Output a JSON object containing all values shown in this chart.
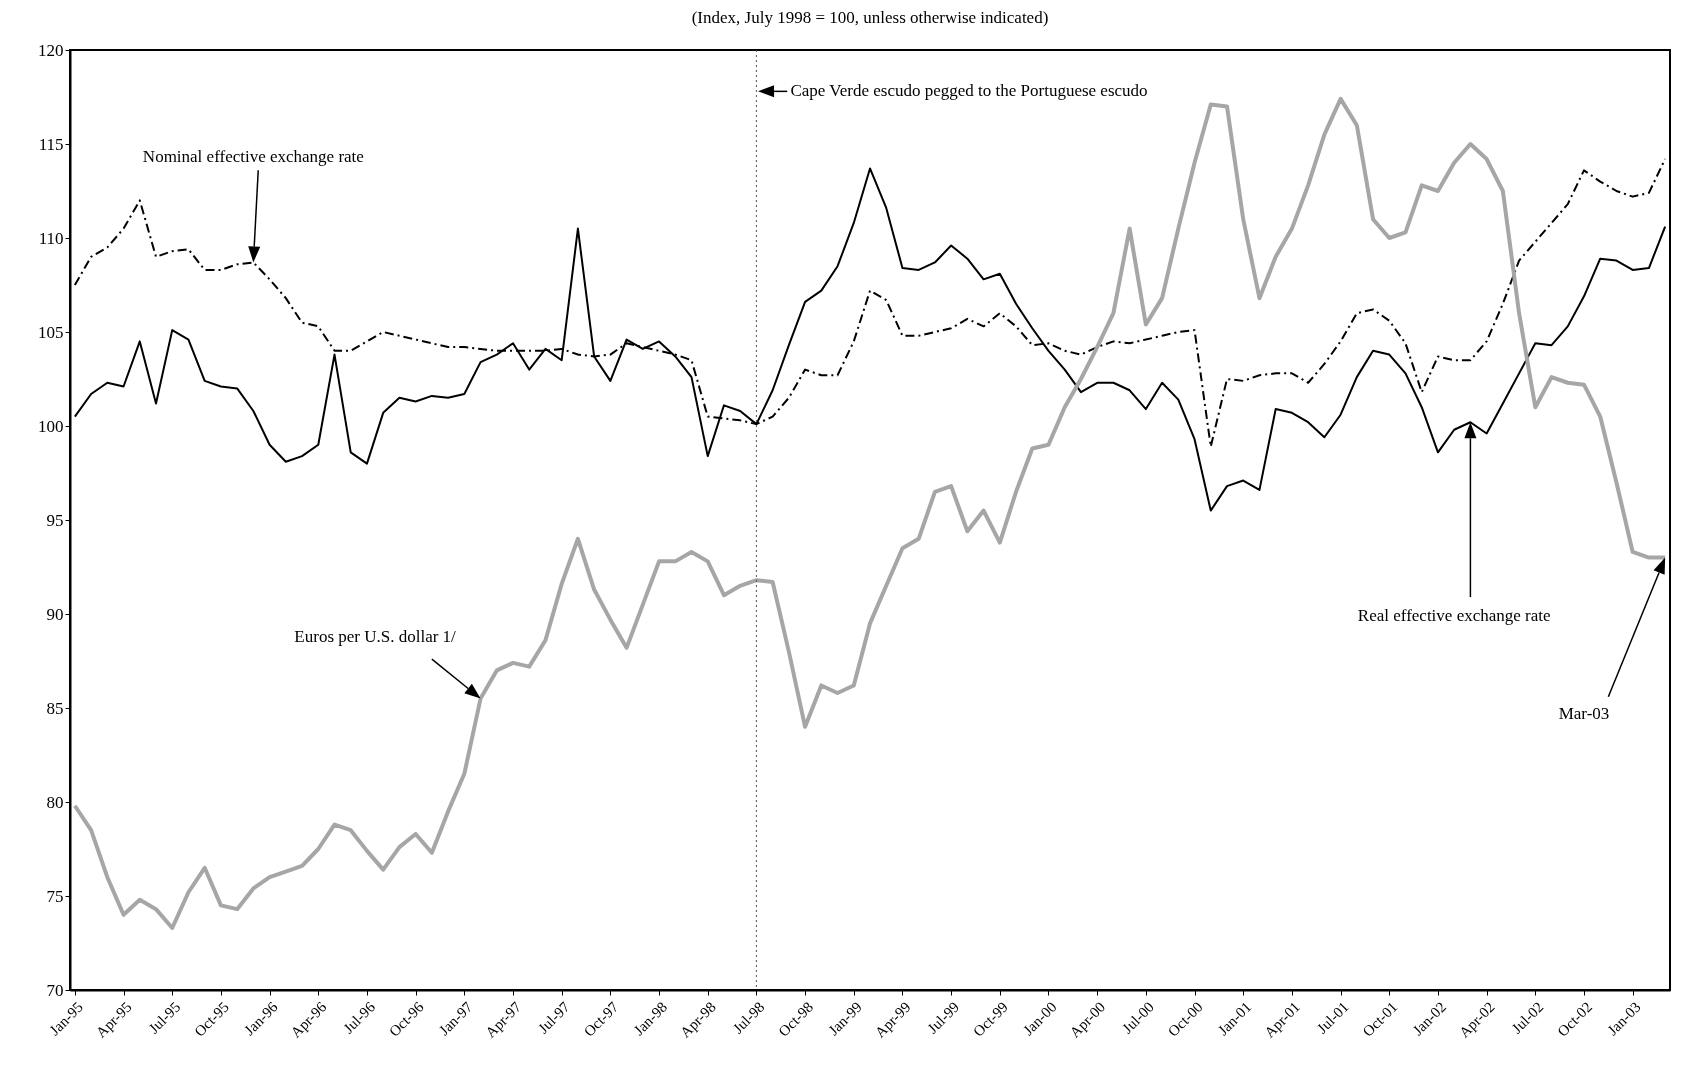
{
  "chart_data": {
    "type": "line",
    "title": "(Index, July 1998 = 100, unless otherwise indicated)",
    "categories": [
      "Jan-95",
      null,
      null,
      "Apr-95",
      null,
      null,
      "Jul-95",
      null,
      null,
      "Oct-95",
      null,
      null,
      "Jan-96",
      null,
      null,
      "Apr-96",
      null,
      null,
      "Jul-96",
      null,
      null,
      "Oct-96",
      null,
      null,
      "Jan-97",
      null,
      null,
      "Apr-97",
      null,
      null,
      "Jul-97",
      null,
      null,
      "Oct-97",
      null,
      null,
      "Jan-98",
      null,
      null,
      "Apr-98",
      null,
      null,
      "Jul-98",
      null,
      null,
      "Oct-98",
      null,
      null,
      "Jan-99",
      null,
      null,
      "Apr-99",
      null,
      null,
      "Jul-99",
      null,
      null,
      "Oct-99",
      null,
      null,
      "Jan-00",
      null,
      null,
      "Apr-00",
      null,
      null,
      "Jul-00",
      null,
      null,
      "Oct-00",
      null,
      null,
      "Jan-01",
      null,
      null,
      "Apr-01",
      null,
      null,
      "Jul-01",
      null,
      null,
      "Oct-01",
      null,
      null,
      "Jan-02",
      null,
      null,
      "Apr-02",
      null,
      null,
      "Jul-02",
      null,
      null,
      "Oct-02",
      null,
      null,
      "Jan-03",
      null,
      null
    ],
    "ylim": [
      70,
      120
    ],
    "yticks": [
      70,
      75,
      80,
      85,
      90,
      95,
      100,
      105,
      110,
      115,
      120
    ],
    "series": [
      {
        "name": "Nominal effective exchange rate",
        "color": "#000000",
        "line_style": "dashed",
        "values": [
          107.5,
          109,
          109.5,
          110.5,
          112,
          109,
          109.3,
          109.4,
          108.3,
          108.3,
          108.6,
          108.7,
          107.8,
          106.8,
          105.5,
          105.3,
          104,
          104,
          104.5,
          105,
          104.8,
          104.6,
          104.4,
          104.2,
          104.2,
          104.1,
          104,
          104,
          104,
          104,
          104.1,
          103.8,
          103.7,
          103.8,
          104.4,
          104.2,
          104,
          103.8,
          103.5,
          100.5,
          100.4,
          100.3,
          100.1,
          100.5,
          101.5,
          103,
          102.7,
          102.7,
          104.5,
          107.2,
          106.7,
          104.8,
          104.8,
          105,
          105.2,
          105.7,
          105.3,
          106,
          105.3,
          104.3,
          104.4,
          104,
          103.8,
          104.2,
          104.5,
          104.4,
          104.6,
          104.8,
          105,
          105.1,
          98.9,
          102.5,
          102.4,
          102.7,
          102.8,
          102.8,
          102.3,
          103.3,
          104.5,
          106,
          106.2,
          105.6,
          104.4,
          101.8,
          103.7,
          103.5,
          103.5,
          104.5,
          106.5,
          108.8,
          109.8,
          110.8,
          111.8,
          113.6,
          113,
          112.5,
          112.2,
          112.4,
          114.2
        ]
      },
      {
        "name": "Real effective exchange rate",
        "color": "#000000",
        "line_style": "solid",
        "values": [
          100.5,
          101.7,
          102.3,
          102.1,
          104.5,
          101.2,
          105.1,
          104.6,
          102.4,
          102.1,
          102,
          100.8,
          99,
          98.1,
          98.4,
          99,
          103.8,
          98.6,
          98,
          100.7,
          101.5,
          101.3,
          101.6,
          101.5,
          101.7,
          103.4,
          103.8,
          104.4,
          103,
          104.1,
          103.5,
          110.5,
          103.7,
          102.4,
          104.6,
          104.1,
          104.5,
          103.7,
          102.6,
          98.4,
          101.1,
          100.8,
          100.1,
          101.9,
          104.3,
          106.6,
          107.2,
          108.5,
          110.8,
          113.7,
          111.6,
          108.4,
          108.3,
          108.7,
          109.6,
          108.9,
          107.8,
          108.1,
          106.5,
          105.2,
          104,
          103,
          101.8,
          102.3,
          102.3,
          101.9,
          100.9,
          102.3,
          101.4,
          99.3,
          95.5,
          96.8,
          97.1,
          96.6,
          100.9,
          100.7,
          100.2,
          99.4,
          100.6,
          102.6,
          104,
          103.8,
          102.8,
          101,
          98.6,
          99.8,
          100.2,
          99.6,
          101.2,
          102.8,
          104.4,
          104.3,
          105.3,
          106.9,
          108.9,
          108.8,
          108.3,
          108.4,
          110.6
        ]
      },
      {
        "name": "Euros per U.S. dollar 1/",
        "color": "#a6a6a6",
        "line_style": "solid",
        "values": [
          79.8,
          78.5,
          76,
          74,
          74.8,
          74.3,
          73.3,
          75.2,
          76.5,
          74.5,
          74.3,
          75.4,
          76,
          76.3,
          76.6,
          77.5,
          78.8,
          78.5,
          77.4,
          76.4,
          77.6,
          78.3,
          77.3,
          79.5,
          81.5,
          85.5,
          87,
          87.4,
          87.2,
          88.6,
          91.6,
          94,
          91.3,
          89.7,
          88.2,
          90.5,
          92.8,
          92.8,
          93.3,
          92.8,
          91,
          91.5,
          91.8,
          91.7,
          88,
          84,
          86.2,
          85.8,
          86.2,
          89.5,
          91.5,
          93.5,
          94,
          96.5,
          96.8,
          94.4,
          95.5,
          93.8,
          96.5,
          98.8,
          99,
          101,
          102.5,
          104.2,
          106,
          110.5,
          105.4,
          106.8,
          110.5,
          114,
          117.1,
          117,
          111,
          106.8,
          109,
          110.5,
          112.8,
          115.5,
          117.4,
          116,
          111,
          110,
          110.3,
          112.8,
          112.5,
          114,
          115,
          114.2,
          112.5,
          106,
          101,
          102.6,
          102.3,
          102.2,
          100.5,
          97,
          93.3,
          93,
          93
        ]
      }
    ],
    "ref_lines": [
      {
        "axis": "x",
        "value": "Jul-98",
        "label": "Cape Verde escudo pegged to the Portuguese escudo",
        "color": "#555555",
        "line_style": "dotted"
      }
    ],
    "annotations": [
      "Mar-03"
    ]
  }
}
